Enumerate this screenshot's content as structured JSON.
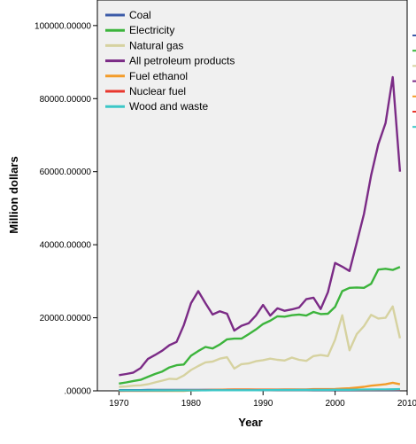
{
  "chart_data": {
    "type": "line",
    "title": "",
    "xlabel": "Year",
    "ylabel": "Million dollars",
    "xlim": [
      1967,
      2010
    ],
    "ylim": [
      0,
      107000
    ],
    "x_ticks": [
      1970,
      1980,
      1990,
      2000,
      2010
    ],
    "y_ticks": [
      0,
      20000,
      40000,
      60000,
      80000,
      100000
    ],
    "y_tick_labels": [
      ".00000",
      "20000.00000",
      "40000.00000",
      "60000.00000",
      "80000.00000",
      "100000.00000"
    ],
    "x": [
      1970,
      1971,
      1972,
      1973,
      1974,
      1975,
      1976,
      1977,
      1978,
      1979,
      1980,
      1981,
      1982,
      1983,
      1984,
      1985,
      1986,
      1987,
      1988,
      1989,
      1990,
      1991,
      1992,
      1993,
      1994,
      1995,
      1996,
      1997,
      1998,
      1999,
      2000,
      2001,
      2002,
      2003,
      2004,
      2005,
      2006,
      2007,
      2008,
      2009
    ],
    "legend_position": "top-left",
    "grid": false,
    "series": [
      {
        "name": "Coal",
        "color": "#3c5ba8",
        "values": [
          200,
          200,
          200,
          200,
          250,
          250,
          250,
          250,
          250,
          250,
          250,
          250,
          250,
          250,
          250,
          250,
          250,
          250,
          250,
          250,
          250,
          250,
          250,
          250,
          250,
          250,
          250,
          250,
          250,
          250,
          250,
          250,
          250,
          250,
          250,
          250,
          250,
          250,
          250,
          250
        ]
      },
      {
        "name": "Electricity",
        "color": "#3cb43c",
        "values": [
          2000,
          2300,
          2700,
          3000,
          3800,
          4600,
          5300,
          6400,
          7000,
          7200,
          9600,
          10900,
          12000,
          11600,
          12700,
          14100,
          14300,
          14300,
          15500,
          16800,
          18300,
          19200,
          20400,
          20300,
          20700,
          20900,
          20600,
          21600,
          21000,
          21100,
          23000,
          27300,
          28200,
          28300,
          28200,
          29300,
          33200,
          33400,
          33100,
          33900
        ]
      },
      {
        "name": "Natural gas",
        "color": "#d6d2a0",
        "values": [
          1100,
          1200,
          1400,
          1500,
          1800,
          2300,
          2800,
          3300,
          3200,
          4200,
          5700,
          6800,
          7800,
          8000,
          8800,
          9200,
          6100,
          7300,
          7500,
          8100,
          8400,
          8800,
          8500,
          8300,
          9100,
          8500,
          8200,
          9500,
          9800,
          9500,
          14000,
          20700,
          11100,
          15500,
          17700,
          20800,
          19800,
          20000,
          23100,
          14400
        ]
      },
      {
        "name": "All petroleum products",
        "color": "#7b2b86",
        "values": [
          4300,
          4600,
          5000,
          6200,
          8700,
          9800,
          11000,
          12500,
          13400,
          18000,
          24000,
          27300,
          24000,
          20900,
          21800,
          21100,
          16500,
          17800,
          18500,
          20600,
          23500,
          20600,
          22600,
          21900,
          22300,
          22800,
          25100,
          25500,
          22400,
          27000,
          35000,
          34000,
          32800,
          40500,
          48400,
          59000,
          67500,
          73300,
          85900,
          60000
        ]
      },
      {
        "name": "Fuel ethanol",
        "color": "#f39c2a",
        "values": [
          0,
          0,
          0,
          0,
          0,
          0,
          0,
          0,
          0,
          0,
          100,
          150,
          200,
          250,
          300,
          350,
          400,
          400,
          400,
          350,
          350,
          350,
          350,
          400,
          400,
          400,
          400,
          450,
          450,
          450,
          500,
          600,
          700,
          900,
          1100,
          1400,
          1600,
          1800,
          2200,
          1800
        ]
      },
      {
        "name": "Nuclear fuel",
        "color": "#e8372e",
        "values": [
          30,
          40,
          50,
          60,
          80,
          100,
          120,
          140,
          160,
          180,
          200,
          200,
          220,
          220,
          230,
          240,
          250,
          250,
          250,
          250,
          260,
          260,
          260,
          260,
          270,
          270,
          270,
          280,
          280,
          280,
          280,
          280,
          290,
          290,
          300,
          300,
          310,
          320,
          330,
          340
        ]
      },
      {
        "name": "Wood and waste",
        "color": "#3cc7c7",
        "values": [
          100,
          100,
          100,
          100,
          100,
          120,
          120,
          120,
          130,
          130,
          150,
          150,
          150,
          160,
          160,
          170,
          170,
          170,
          180,
          180,
          200,
          200,
          210,
          220,
          230,
          240,
          250,
          260,
          260,
          270,
          280,
          290,
          300,
          320,
          340,
          360,
          380,
          400,
          420,
          450
        ]
      }
    ]
  }
}
